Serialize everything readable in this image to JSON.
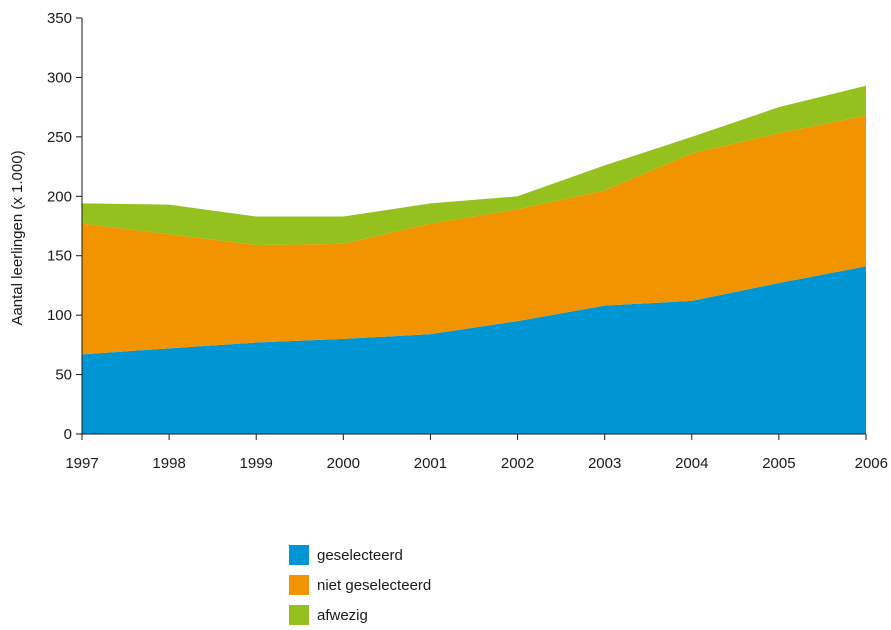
{
  "chart_data": {
    "type": "area",
    "stacked": true,
    "ylabel": "Aantal leerlingen (x 1.000)",
    "xlabel": "",
    "ylim": [
      0,
      350
    ],
    "yticks": [
      0,
      50,
      100,
      150,
      200,
      250,
      300,
      350
    ],
    "categories": [
      "1997",
      "1998",
      "1999",
      "2000",
      "2001",
      "2002",
      "2003",
      "2004",
      "2005",
      "2006"
    ],
    "grid": false,
    "legend_position": "bottom",
    "series": [
      {
        "name": "geselecteerd",
        "color": "#0096d4",
        "values": [
          67,
          72,
          77,
          80,
          84,
          95,
          108,
          112,
          127,
          141
        ]
      },
      {
        "name": "niet geselecteerd",
        "color": "#f29400",
        "values": [
          110,
          96,
          82,
          80,
          93,
          94,
          97,
          124,
          126,
          127
        ]
      },
      {
        "name": "afwezig",
        "color": "#95c11f",
        "values": [
          17,
          25,
          24,
          23,
          17,
          11,
          21,
          14,
          22,
          25
        ]
      }
    ]
  }
}
